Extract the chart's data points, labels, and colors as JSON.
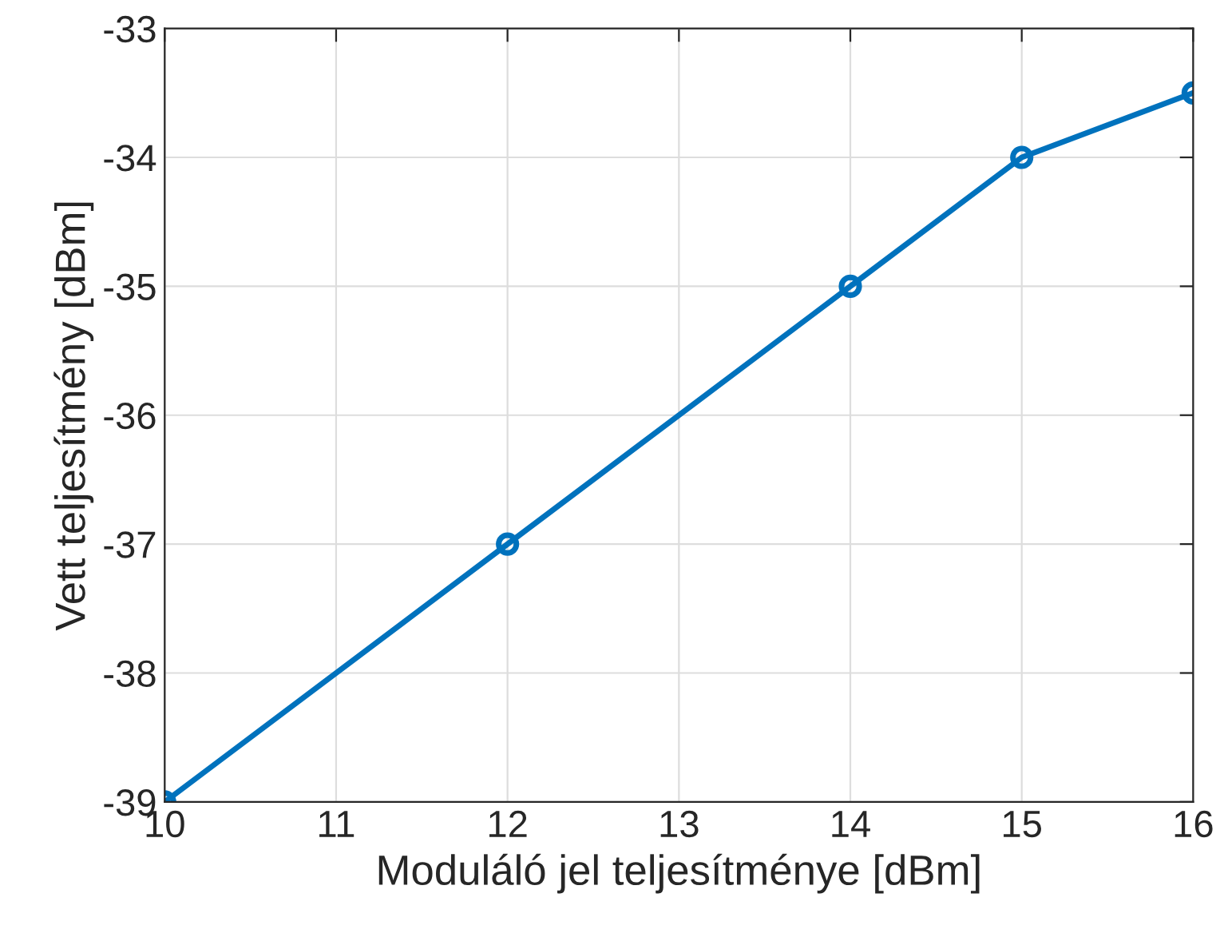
{
  "chart_data": {
    "type": "line",
    "xlabel": "Moduláló jel teljesítménye [dBm]",
    "ylabel": "Vett teljesítmény [dBm]",
    "x": [
      10,
      12,
      14,
      15,
      16
    ],
    "series": [
      {
        "color": "#0072bd",
        "values": [
          -39,
          -37,
          -35,
          -34,
          -33.5
        ]
      }
    ],
    "xlim": [
      10,
      16
    ],
    "xticks": [
      10,
      11,
      12,
      13,
      14,
      15,
      16
    ],
    "ylim": [
      -39,
      -33
    ],
    "yticks": [
      -39,
      -38,
      -37,
      -36,
      -35,
      -34,
      -33
    ],
    "grid": true,
    "marker": "circle",
    "line_style": "solid"
  }
}
